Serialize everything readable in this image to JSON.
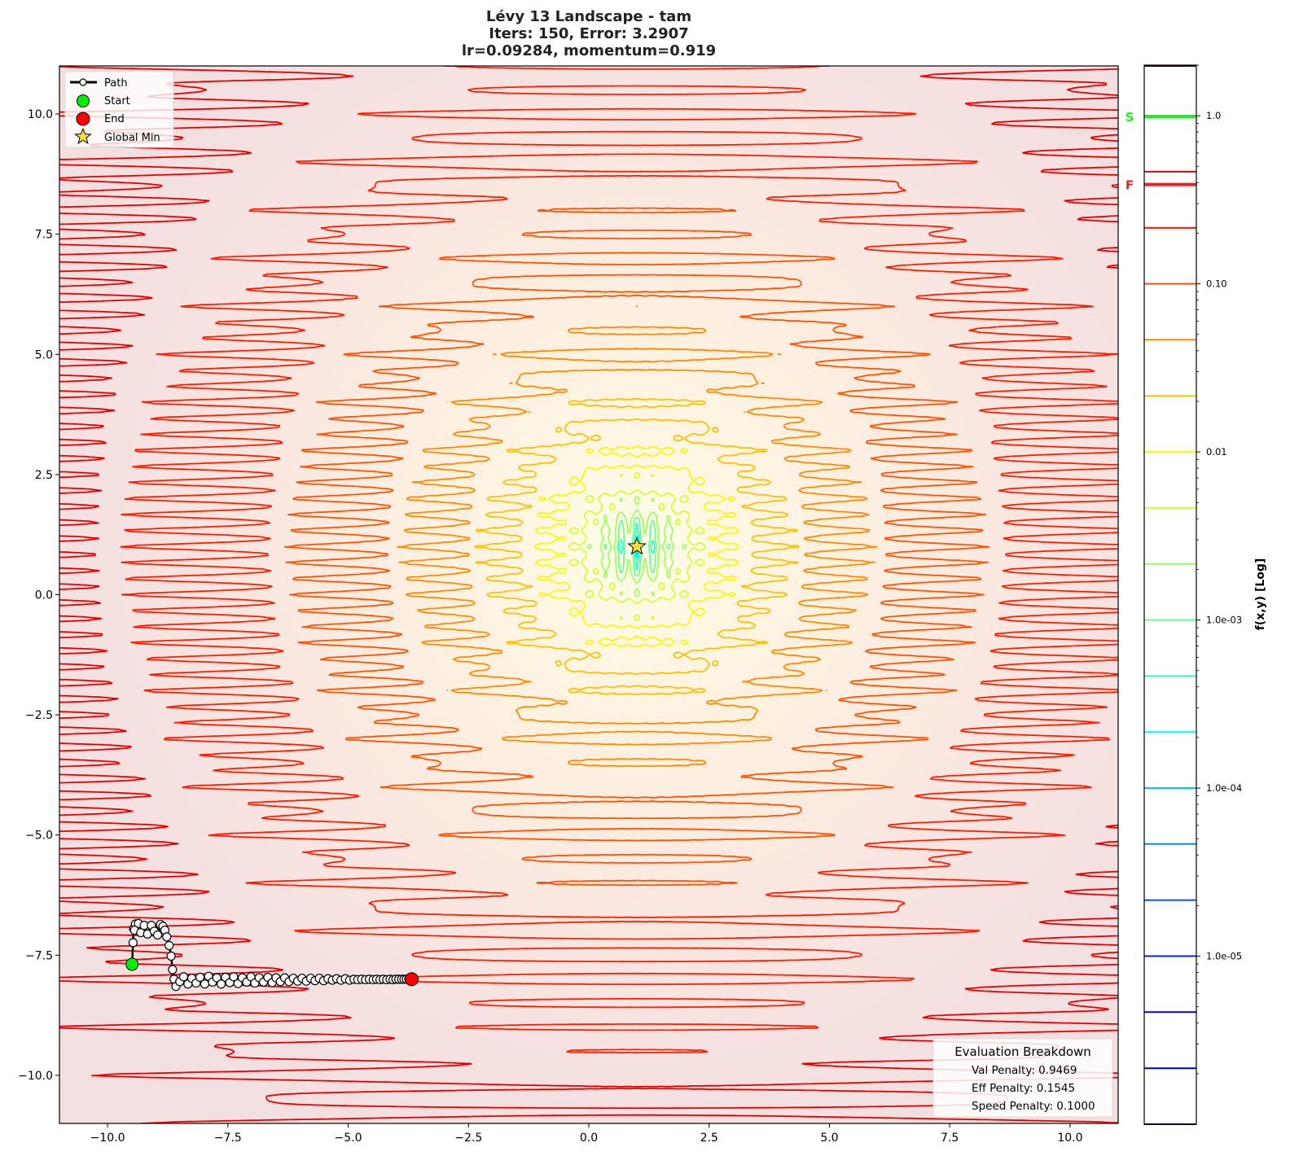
{
  "title": {
    "line1": "Lévy 13 Landscape - tam",
    "line2": "Iters: 150, Error: 3.2907",
    "line3": "lr=0.09284, momentum=0.919"
  },
  "chart_data": {
    "type": "contour",
    "function": "Lévy 13",
    "xlim": [
      -11,
      11
    ],
    "ylim": [
      -11,
      11
    ],
    "x_ticks": [
      -10,
      -7.5,
      -5,
      -2.5,
      0,
      2.5,
      5,
      7.5,
      10
    ],
    "x_tick_labels": [
      "−10.0",
      "−7.5",
      "−5.0",
      "−2.5",
      "0.0",
      "2.5",
      "5.0",
      "7.5",
      "10.0"
    ],
    "y_ticks": [
      10,
      7.5,
      5,
      2.5,
      0,
      -2.5,
      -5,
      -7.5,
      -10
    ],
    "y_tick_labels": [
      "10.0",
      "7.5",
      "5.0",
      "2.5",
      "0.0",
      "−2.5",
      "−5.0",
      "−7.5",
      "−10.0"
    ],
    "contour_levels_log10": [
      -6,
      -5.667,
      -5.333,
      -5,
      -4.667,
      -4.333,
      -4,
      -3.667,
      -3.333,
      -3,
      -2.667,
      -2.333,
      -2,
      -1.667,
      -1.333,
      -1,
      -0.667,
      -0.333,
      0
    ],
    "colormap": "jet",
    "global_min": [
      1,
      1
    ],
    "start": [
      -9.49,
      -7.69
    ],
    "end": [
      -3.68,
      -8.0
    ],
    "path": [
      [
        -9.49,
        -7.69
      ],
      [
        -9.47,
        -7.24
      ],
      [
        -9.46,
        -6.95
      ],
      [
        -9.42,
        -6.85
      ],
      [
        -9.36,
        -6.84
      ],
      [
        -9.44,
        -6.98
      ],
      [
        -9.31,
        -7.03
      ],
      [
        -9.24,
        -6.88
      ],
      [
        -9.17,
        -7.06
      ],
      [
        -9.09,
        -6.88
      ],
      [
        -9.03,
        -7.0
      ],
      [
        -8.96,
        -7.08
      ],
      [
        -8.9,
        -6.86
      ],
      [
        -8.85,
        -6.9
      ],
      [
        -8.81,
        -6.98
      ],
      [
        -8.77,
        -7.12
      ],
      [
        -8.72,
        -7.3
      ],
      [
        -8.68,
        -7.52
      ],
      [
        -8.65,
        -7.8
      ],
      [
        -8.62,
        -8.0
      ],
      [
        -8.58,
        -8.15
      ],
      [
        -8.5,
        -8.05
      ],
      [
        -8.42,
        -7.95
      ],
      [
        -8.33,
        -8.1
      ],
      [
        -8.25,
        -7.98
      ],
      [
        -8.16,
        -8.08
      ],
      [
        -8.08,
        -7.96
      ],
      [
        -7.98,
        -8.1
      ],
      [
        -7.9,
        -7.94
      ],
      [
        -7.82,
        -8.06
      ],
      [
        -7.73,
        -7.97
      ],
      [
        -7.64,
        -8.1
      ],
      [
        -7.55,
        -7.96
      ],
      [
        -7.46,
        -8.07
      ],
      [
        -7.38,
        -7.95
      ],
      [
        -7.29,
        -8.09
      ],
      [
        -7.2,
        -7.97
      ],
      [
        -7.11,
        -8.06
      ],
      [
        -7.02,
        -7.95
      ],
      [
        -6.94,
        -8.08
      ],
      [
        -6.85,
        -7.97
      ],
      [
        -6.76,
        -8.06
      ],
      [
        -6.67,
        -7.96
      ],
      [
        -6.58,
        -8.07
      ],
      [
        -6.5,
        -7.97
      ],
      [
        -6.41,
        -8.05
      ],
      [
        -6.32,
        -7.97
      ],
      [
        -6.23,
        -8.05
      ],
      [
        -6.14,
        -7.98
      ],
      [
        -6.05,
        -8.04
      ],
      [
        -5.96,
        -7.98
      ],
      [
        -5.87,
        -8.04
      ],
      [
        -5.78,
        -7.98
      ],
      [
        -5.69,
        -8.03
      ],
      [
        -5.6,
        -7.98
      ],
      [
        -5.51,
        -8.03
      ],
      [
        -5.42,
        -7.99
      ],
      [
        -5.33,
        -8.02
      ],
      [
        -5.24,
        -7.99
      ],
      [
        -5.15,
        -8.02
      ],
      [
        -5.06,
        -7.99
      ],
      [
        -4.97,
        -8.02
      ],
      [
        -4.88,
        -8.0
      ],
      [
        -4.8,
        -8.01
      ],
      [
        -4.72,
        -8.0
      ],
      [
        -4.64,
        -8.01
      ],
      [
        -4.56,
        -8.0
      ],
      [
        -4.48,
        -8.01
      ],
      [
        -4.41,
        -8.0
      ],
      [
        -4.34,
        -8.01
      ],
      [
        -4.27,
        -8.0
      ],
      [
        -4.2,
        -8.01
      ],
      [
        -4.13,
        -8.0
      ],
      [
        -4.07,
        -8.01
      ],
      [
        -4.01,
        -8.0
      ],
      [
        -3.95,
        -8.0
      ],
      [
        -3.89,
        -8.0
      ],
      [
        -3.84,
        -8.0
      ],
      [
        -3.79,
        -8.0
      ],
      [
        -3.74,
        -8.0
      ],
      [
        -3.68,
        -8.0
      ]
    ],
    "legend": {
      "placement": "upper-left",
      "entries": [
        "Path",
        "Start",
        "End",
        "Global Min"
      ]
    },
    "colorbar": {
      "label": "f(x,y) [Log]",
      "scale": "log",
      "range": [
        1e-06,
        2
      ],
      "tick_values": [
        1.0,
        0.1,
        0.01,
        0.001,
        0.0001,
        1e-05
      ],
      "tick_labels": [
        "1.0",
        "0.10",
        "0.01",
        "1.0e-03",
        "1.0e-04",
        "1.0e-05"
      ],
      "start_marker": {
        "label": "S",
        "value": 0.99,
        "color": "#22ee22"
      },
      "final_marker": {
        "label": "F",
        "value": 0.39,
        "color": "#ee2222"
      }
    }
  },
  "evaluation": {
    "title": "Evaluation Breakdown",
    "val_penalty": "Val Penalty: 0.9469",
    "eff_penalty": "Eff Penalty: 0.1545",
    "speed_penalty": "Speed Penalty: 0.1000"
  },
  "colors": {
    "start": "#00ee00",
    "end": "#ff0000",
    "global_min": "#ffdd33",
    "path": "#000000"
  }
}
